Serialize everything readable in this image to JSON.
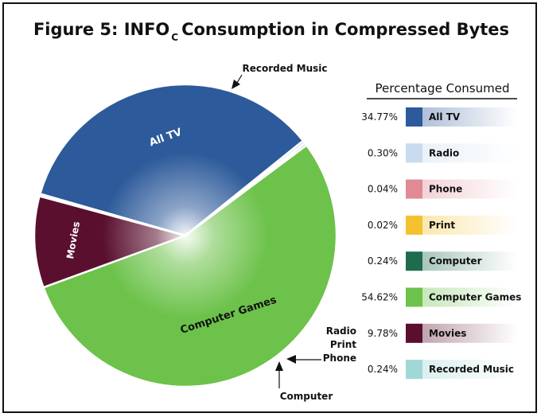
{
  "title": {
    "prefix": "Figure 5:  INFO",
    "subscript": "C",
    "suffix": "Consumption in Compressed Bytes"
  },
  "chart_data": {
    "type": "pie",
    "slices": [
      {
        "label": "All TV",
        "value": 34.77,
        "display": "34.77%",
        "color": "#2d5a9a",
        "pie_label": "All TV",
        "pie_label_color": "#ffffff"
      },
      {
        "label": "Radio",
        "value": 0.3,
        "display": "0.30%",
        "color": "#c9dbee",
        "pie_label": "",
        "pie_label_color": "#111111"
      },
      {
        "label": "Phone",
        "value": 0.04,
        "display": "0.04%",
        "color": "#e08a96",
        "pie_label": "",
        "pie_label_color": "#111111"
      },
      {
        "label": "Print",
        "value": 0.02,
        "display": "0.02%",
        "color": "#f4c22f",
        "pie_label": "",
        "pie_label_color": "#111111"
      },
      {
        "label": "Computer",
        "value": 0.24,
        "display": "0.24%",
        "color": "#1f6b4e",
        "pie_label": "",
        "pie_label_color": "#111111"
      },
      {
        "label": "Computer Games",
        "value": 54.62,
        "display": "54.62%",
        "color": "#6cc24a",
        "pie_label": "Computer Games",
        "pie_label_color": "#111111"
      },
      {
        "label": "Movies",
        "value": 9.78,
        "display": "9.78%",
        "color": "#5a0f2e",
        "pie_label": "Movies",
        "pie_label_color": "#ffffff"
      },
      {
        "label": "Recorded Music",
        "value": 0.24,
        "display": "0.24%",
        "color": "#9fd8d4",
        "pie_label": "",
        "pie_label_color": "#111111"
      }
    ],
    "legend_title": "Percentage Consumed",
    "legend_position": "right",
    "callouts": {
      "recorded_music": "Recorded Music",
      "small_group": [
        "Radio",
        "Print",
        "Phone"
      ],
      "computer": "Computer"
    }
  }
}
